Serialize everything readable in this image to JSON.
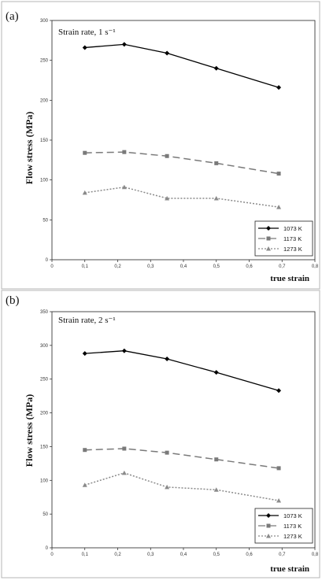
{
  "panels": [
    {
      "letter": "(a)",
      "annotation": "Strain rate, 1 s⁻¹"
    },
    {
      "letter": "(b)",
      "annotation": "Strain rate, 2 s⁻¹"
    }
  ],
  "chart_data": [
    {
      "type": "line",
      "title": "",
      "xlabel": "true strain",
      "ylabel": "Flow stress (MPa)",
      "xlim": [
        0,
        0.8
      ],
      "ylim": [
        0,
        300
      ],
      "xticks": [
        "0",
        "0,1",
        "0,2",
        "0,3",
        "0,4",
        "0,5",
        "0,6",
        "0,7",
        "0,8"
      ],
      "yticks": [
        "0",
        "50",
        "100",
        "150",
        "200",
        "250",
        "300"
      ],
      "grid": false,
      "legend_position": "bottom-right",
      "x": [
        0.1,
        0.22,
        0.35,
        0.5,
        0.69
      ],
      "series": [
        {
          "name": "1073 K",
          "values": [
            266,
            270,
            259,
            240,
            216
          ],
          "color": "#000000",
          "dash": "",
          "marker": "diamond"
        },
        {
          "name": "1173 K",
          "values": [
            134,
            135,
            130,
            121,
            108
          ],
          "color": "#7a7a7a",
          "dash": "9,5",
          "marker": "square"
        },
        {
          "name": "1273 K",
          "values": [
            84,
            91,
            77,
            77,
            66
          ],
          "color": "#8a8a8a",
          "dash": "2,2",
          "marker": "triangle"
        }
      ]
    },
    {
      "type": "line",
      "title": "",
      "xlabel": "true strain",
      "ylabel": "Flow stress (MPa)",
      "xlim": [
        0,
        0.8
      ],
      "ylim": [
        0,
        350
      ],
      "xticks": [
        "0",
        "0,1",
        "0,2",
        "0,3",
        "0,4",
        "0,5",
        "0,6",
        "0,7",
        "0,8"
      ],
      "yticks": [
        "0",
        "50",
        "100",
        "150",
        "200",
        "250",
        "300",
        "350"
      ],
      "grid": false,
      "legend_position": "bottom-right",
      "x": [
        0.1,
        0.22,
        0.35,
        0.5,
        0.69
      ],
      "series": [
        {
          "name": "1073 K",
          "values": [
            288,
            292,
            280,
            260,
            233
          ],
          "color": "#000000",
          "dash": "",
          "marker": "diamond"
        },
        {
          "name": "1173 K",
          "values": [
            145,
            147,
            141,
            131,
            118
          ],
          "color": "#7a7a7a",
          "dash": "9,5",
          "marker": "square"
        },
        {
          "name": "1273 K",
          "values": [
            93,
            111,
            90,
            86,
            70
          ],
          "color": "#8a8a8a",
          "dash": "2,2",
          "marker": "triangle"
        }
      ]
    }
  ]
}
